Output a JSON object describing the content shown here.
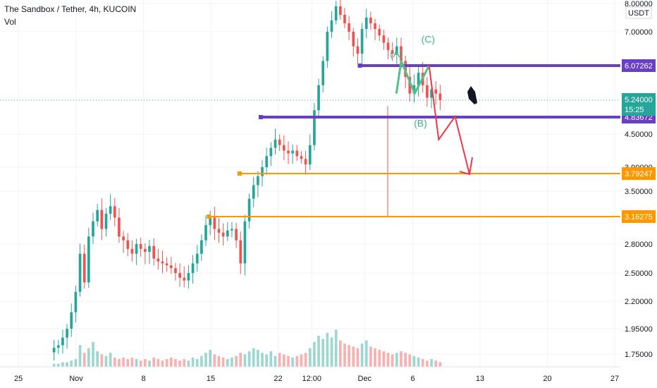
{
  "header": {
    "title": "The Sandbox / Tether, 4h, KUCOIN",
    "volume_label": "Vol"
  },
  "currency_label": "USDT",
  "colors": {
    "up": "#26a69a",
    "down": "#ef5350",
    "level_purple": "#6a3fc4",
    "level_orange": "#ff9800",
    "price_badge": "#26a69a",
    "arrow_red": "#f23645",
    "wave_green": "#53c08a",
    "grid": "#f0f3fa"
  },
  "chart_data": {
    "type": "candlestick",
    "y_axis": {
      "ticks": [
        {
          "label": "8.00000",
          "value": 8.0
        },
        {
          "label": "7.00000",
          "value": 7.0
        },
        {
          "label": "4.50000",
          "value": 4.5
        },
        {
          "label": "3.90000",
          "value": 3.9
        },
        {
          "label": "3.50000",
          "value": 3.5
        },
        {
          "label": "2.80000",
          "value": 2.8
        },
        {
          "label": "2.50000",
          "value": 2.5
        },
        {
          "label": "2.20000",
          "value": 2.2
        },
        {
          "label": "1.95000",
          "value": 1.95
        },
        {
          "label": "1.75000",
          "value": 1.75
        }
      ]
    },
    "x_axis": {
      "ticks": [
        {
          "label": "25",
          "day": -6
        },
        {
          "label": "Nov",
          "day": 0
        },
        {
          "label": "8",
          "day": 7
        },
        {
          "label": "15",
          "day": 14
        },
        {
          "label": "22",
          "day": 21
        },
        {
          "label": "12:00",
          "day": 24.5
        },
        {
          "label": "Dec",
          "day": 30
        },
        {
          "label": "6",
          "day": 35
        },
        {
          "label": "13",
          "day": 42
        },
        {
          "label": "20",
          "day": 49
        },
        {
          "label": "27",
          "day": 56
        }
      ]
    },
    "levels": [
      {
        "label": "6.07262",
        "value": 6.07262,
        "color": "level_purple",
        "from_day": 29.5
      },
      {
        "label": "4.83672",
        "value": 4.83672,
        "color": "level_purple",
        "from_day": 19.2
      },
      {
        "label": "3.79247",
        "value": 3.79247,
        "color": "level_orange",
        "from_day": 17.0
      },
      {
        "label": "3.16275",
        "value": 3.16275,
        "color": "level_orange",
        "from_day": 13.8
      }
    ],
    "last_price": {
      "label": "5.24000",
      "value": 5.24,
      "countdown": "15:25"
    },
    "closes": [
      1.8,
      1.82,
      1.88,
      1.95,
      2.1,
      2.3,
      2.7,
      2.4,
      2.9,
      3.1,
      3.25,
      3.0,
      3.2,
      3.3,
      3.15,
      2.9,
      2.85,
      2.75,
      2.7,
      2.8,
      2.75,
      2.72,
      2.78,
      2.65,
      2.62,
      2.6,
      2.58,
      2.55,
      2.5,
      2.45,
      2.42,
      2.5,
      2.6,
      2.7,
      2.85,
      3.05,
      3.15,
      3.0,
      2.95,
      2.9,
      2.98,
      3.0,
      2.85,
      2.6,
      3.1,
      3.4,
      3.6,
      3.75,
      3.9,
      4.1,
      4.25,
      4.4,
      4.3,
      4.2,
      4.15,
      4.2,
      4.1,
      4.05,
      3.95,
      4.3,
      5.0,
      5.6,
      6.2,
      7.0,
      7.4,
      7.9,
      7.6,
      7.3,
      7.0,
      6.6,
      6.4,
      7.1,
      7.5,
      7.3,
      7.1,
      6.9,
      6.7,
      6.5,
      6.4,
      6.6,
      6.2,
      5.8,
      5.4,
      5.6,
      5.9,
      5.6,
      5.3,
      5.5,
      5.4,
      5.24
    ],
    "volumes": [
      2,
      2,
      3,
      3,
      4,
      5,
      14,
      9,
      12,
      16,
      10,
      8,
      7,
      9,
      6,
      5,
      6,
      5,
      6,
      5,
      4,
      5,
      4,
      6,
      5,
      4,
      5,
      6,
      5,
      4,
      5,
      4,
      6,
      5,
      7,
      9,
      11,
      8,
      7,
      6,
      5,
      6,
      7,
      9,
      8,
      10,
      12,
      11,
      9,
      8,
      10,
      7,
      9,
      8,
      7,
      6,
      7,
      8,
      9,
      12,
      16,
      20,
      18,
      22,
      19,
      24,
      17,
      15,
      14,
      13,
      12,
      15,
      17,
      13,
      12,
      11,
      10,
      9,
      8,
      9,
      10,
      9,
      8,
      7,
      6,
      5,
      4,
      5,
      4,
      3
    ],
    "annotations": {
      "wave_labels": [
        {
          "label": "(A)",
          "day": 33.3,
          "value": 6.3
        },
        {
          "label": "(B)",
          "day": 35.8,
          "value": 4.65
        },
        {
          "label": "(C)",
          "day": 36.6,
          "value": 6.7
        }
      ]
    }
  }
}
